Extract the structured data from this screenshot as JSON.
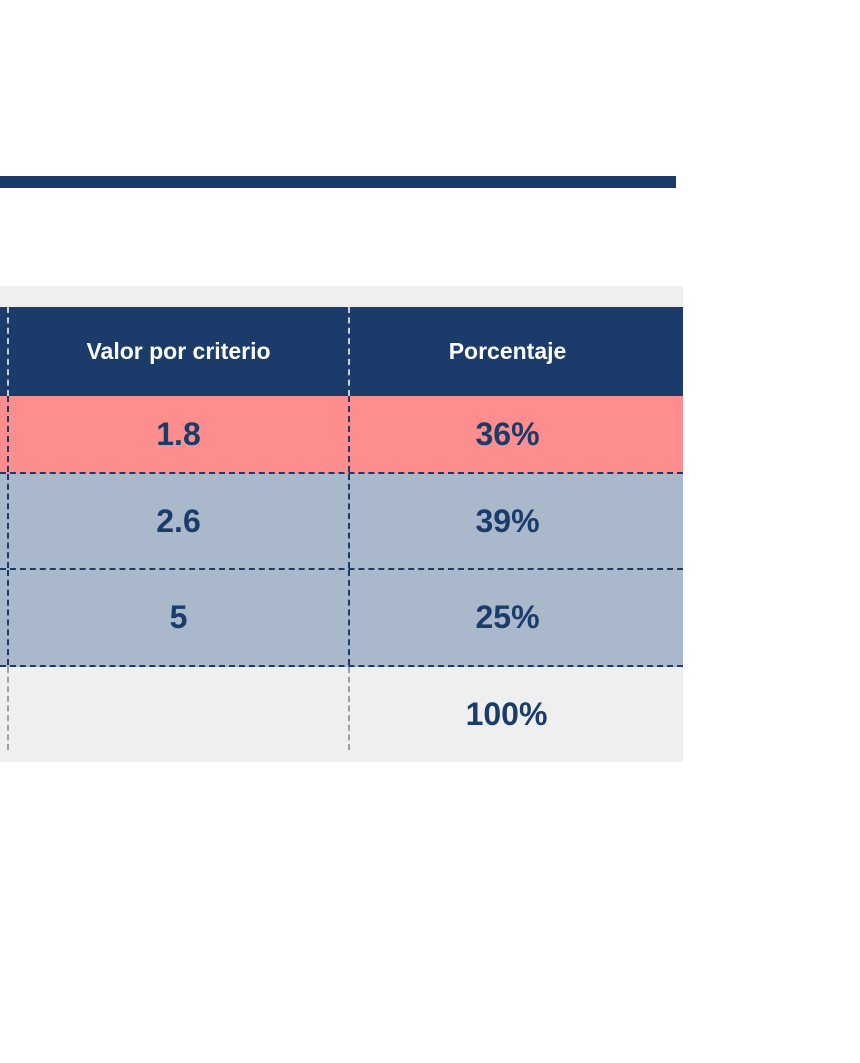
{
  "decor": {
    "top_bar_color": "#1B3C6B"
  },
  "table": {
    "headers": [
      "Valor por criterio",
      "Porcentaje"
    ],
    "rows": [
      {
        "valor": "1.8",
        "porcentaje": "36%",
        "highlighted": true
      },
      {
        "valor": "2.6",
        "porcentaje": "39%",
        "highlighted": false
      },
      {
        "valor": "5",
        "porcentaje": "25%",
        "highlighted": false
      }
    ],
    "total": {
      "valor": "",
      "porcentaje": "100%"
    },
    "colors": {
      "header_bg": "#1B3C6B",
      "header_text": "#FFFFFF",
      "highlight_row_bg": "#FE8D8D",
      "row_bg": "#A9B8CA",
      "total_row_bg": "#EFEFEF",
      "table_bg": "#EFEFEF",
      "value_text": "#1B3C6B",
      "grid_dash_dark": "#1B3C6B",
      "grid_dash_light": "#C7CDD6",
      "grid_dash_gray": "#9BA0A6"
    }
  }
}
